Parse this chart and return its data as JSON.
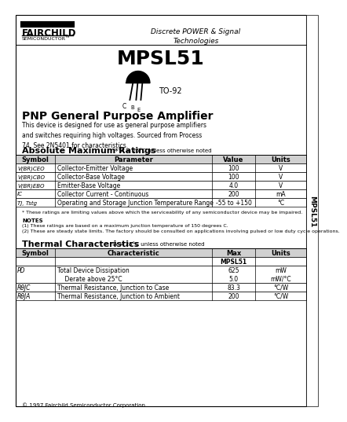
{
  "title": "MPSL51",
  "subtitle": "PNP General Purpose Amplifier",
  "fairchild_line1": "FAIRCHILD",
  "semiconductor_text": "SEMICONDUCTOR™",
  "discrete_text": "Discrete POWER & Signal\nTechnologies",
  "side_text": "MPSL51",
  "package": "TO-92",
  "description": "This device is designed for use as general purpose amplifiers\nand switches requiring high voltages. Sourced from Process\n74. See 2N5401 for characteristics.",
  "abs_max_title": "Absolute Maximum Ratings",
  "abs_max_star": "*",
  "abs_max_subtitle": "TA = 25°C unless otherwise noted",
  "abs_max_headers": [
    "Symbol",
    "Parameter",
    "Value",
    "Units"
  ],
  "abs_max_symbol_display": [
    "V(BR)CEO",
    "V(BR)CBO",
    "V(BR)EBO",
    "IC",
    "TJ, Tstg"
  ],
  "abs_max_param_col": [
    "Collector-Emitter Voltage",
    "Collector-Base Voltage",
    "Emitter-Base Voltage",
    "Collector Current - Continuous",
    "Operating and Storage Junction Temperature Range"
  ],
  "abs_max_value_col": [
    "100",
    "100",
    "4.0",
    "200",
    "-55 to +150"
  ],
  "abs_max_units_col": [
    "V",
    "V",
    "V",
    "mA",
    "°C"
  ],
  "footnote_star": "* These ratings are limiting values above which the serviceability of any semiconductor device may be impaired.",
  "notes_title": "NOTES",
  "notes": [
    "(1) These ratings are based on a maximum junction temperature of 150 degrees C.",
    "(2) These are steady state limits. The factory should be consulted on applications involving pulsed or low duty cycle operations."
  ],
  "thermal_title": "Thermal Characteristics",
  "thermal_subtitle": "TA = 25°C unless otherwise noted",
  "thermal_headers": [
    "Symbol",
    "Characteristic",
    "Max",
    "Units"
  ],
  "thermal_subheader": "MPSL51",
  "thermal_symbol_display": [
    "PD",
    "RθJC",
    "RθJA"
  ],
  "thermal_char_col": [
    "Total Device Dissipation",
    "    Derate above 25°C",
    "Thermal Resistance, Junction to Case",
    "Thermal Resistance, Junction to Ambient"
  ],
  "thermal_max_col": [
    "625",
    "5.0",
    "83.3",
    "200"
  ],
  "thermal_units_col": [
    "mW",
    "mW/°C",
    "°C/W",
    "°C/W"
  ],
  "copyright": "© 1997 Fairchild Semiconductor Corporation",
  "bg_color": "#ffffff",
  "border_color": "#000000",
  "header_bg": "#d0d0d0",
  "text_color": "#000000"
}
